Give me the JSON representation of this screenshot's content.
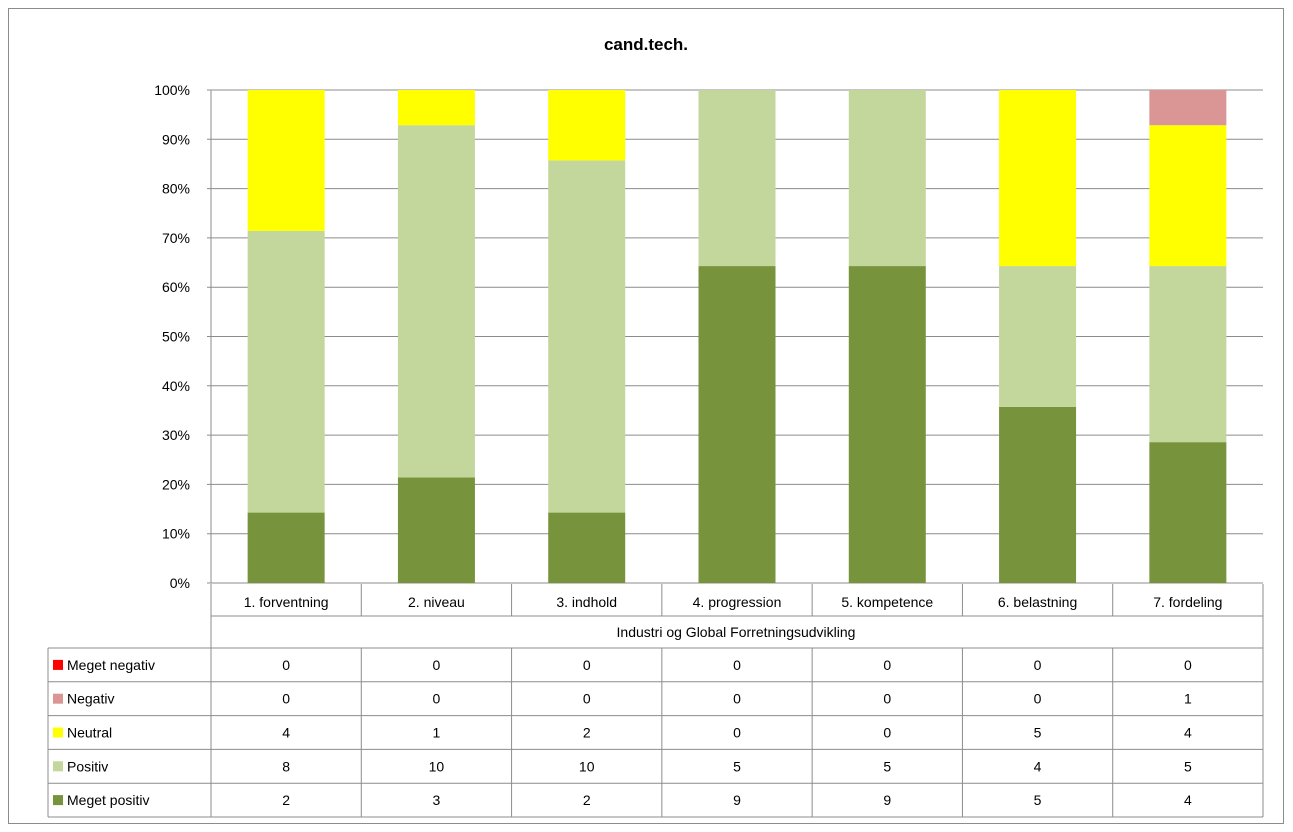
{
  "chart_data": {
    "type": "bar",
    "stacked": "percent",
    "title": "cand.tech.",
    "group_label": "Industri og Global Forretningsudvikling",
    "categories": [
      "1. forventning",
      "2. niveau",
      "3. indhold",
      "4. progression",
      "5. kompetence",
      "6. belastning",
      "7. fordeling"
    ],
    "y_ticks": [
      "0%",
      "10%",
      "20%",
      "30%",
      "40%",
      "50%",
      "60%",
      "70%",
      "80%",
      "90%",
      "100%"
    ],
    "ylim": [
      0,
      100
    ],
    "grid": true,
    "legend_placement": "data-table-left",
    "series": [
      {
        "name": "Meget positiv",
        "color": "#77933C",
        "values": [
          2,
          3,
          2,
          9,
          9,
          5,
          4
        ]
      },
      {
        "name": "Positiv",
        "color": "#C3D69B",
        "values": [
          8,
          10,
          10,
          5,
          5,
          4,
          5
        ]
      },
      {
        "name": "Neutral",
        "color": "#FFFF00",
        "values": [
          4,
          1,
          2,
          0,
          0,
          5,
          4
        ]
      },
      {
        "name": "Negativ",
        "color": "#D99694",
        "values": [
          0,
          0,
          0,
          0,
          0,
          0,
          1
        ]
      },
      {
        "name": "Meget negativ",
        "color": "#FF0000",
        "values": [
          0,
          0,
          0,
          0,
          0,
          0,
          0
        ]
      }
    ],
    "table_row_order": [
      "Meget negativ",
      "Negativ",
      "Neutral",
      "Positiv",
      "Meget positiv"
    ]
  }
}
